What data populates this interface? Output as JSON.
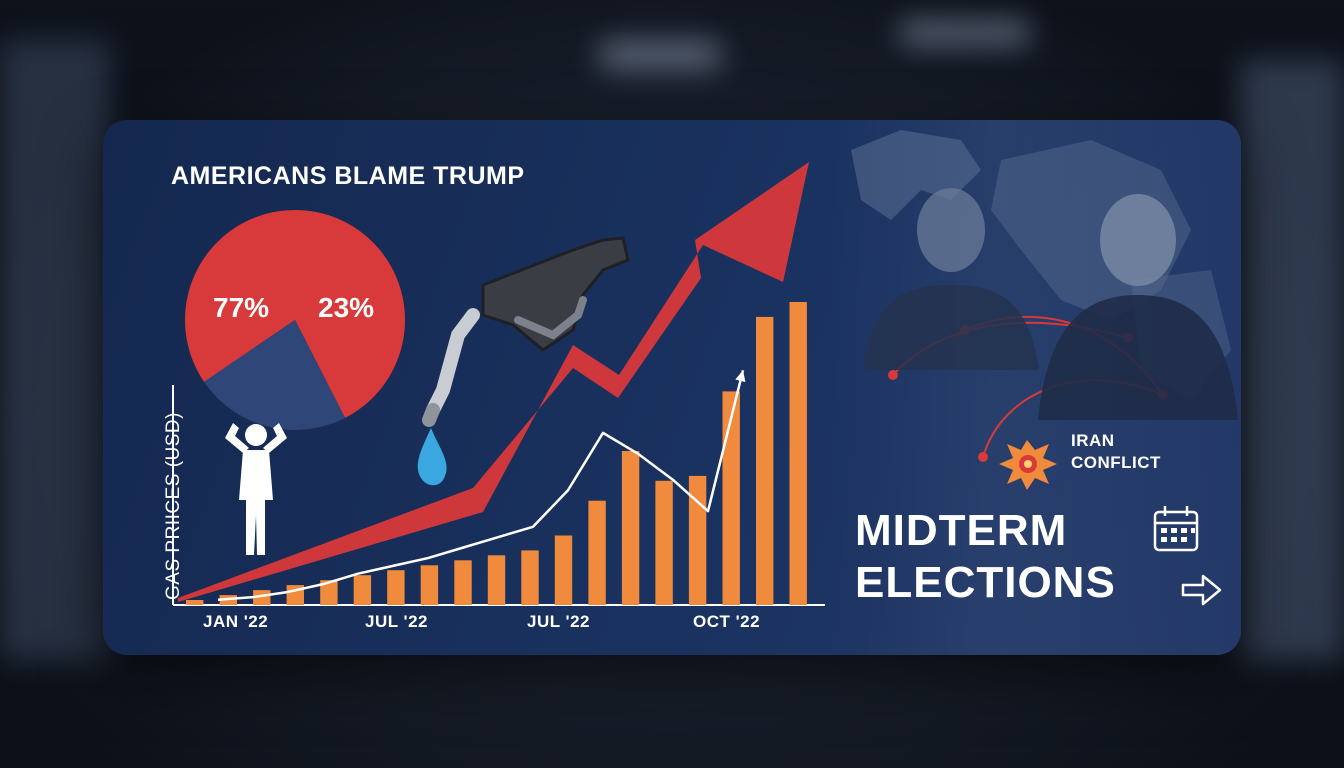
{
  "headline": "AMERICANS BLAME TRUMP",
  "pie": {
    "slices": [
      {
        "label": "77%",
        "value": 77,
        "color": "#d8393a"
      },
      {
        "label": "23%",
        "value": 23,
        "color": "#2e4678"
      }
    ]
  },
  "chart_data": {
    "type": "bar",
    "ylabel": "GAS PRIICES (USD)",
    "x_tick_labels": [
      "JAN '22",
      "JUL '22",
      "JUL '22",
      "OCT '22"
    ],
    "values": [
      1,
      2,
      3,
      4,
      5,
      6,
      7,
      8,
      9,
      10,
      11,
      14,
      21,
      31,
      25,
      26,
      43,
      58,
      61
    ],
    "line_values": [
      1,
      1.5,
      2.5,
      4,
      6,
      7.5,
      9,
      11,
      13,
      15,
      22,
      33,
      29,
      24,
      18,
      45
    ],
    "bar_color": "#f08a3c",
    "line_color": "#ffffff",
    "trend_color": "#d8393a"
  },
  "annotations": {
    "iran_line1": "IRAN",
    "iran_line2": "CONFLICT",
    "midterm_line1": "MIDTERM",
    "midterm_line2": "ELECTIONS"
  },
  "icons": [
    "gas-pump-icon",
    "fuel-drop-icon",
    "frustrated-person-icon",
    "explosion-icon",
    "calendar-icon",
    "arrow-right-icon"
  ]
}
